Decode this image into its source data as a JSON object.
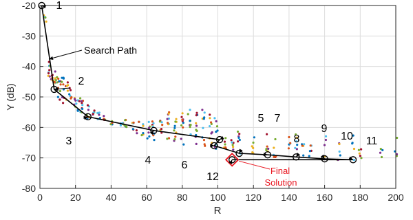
{
  "chart_data": {
    "type": "scatter",
    "xlabel": "R",
    "ylabel": "Y (dB)",
    "xlim": [
      0,
      200
    ],
    "ylim": [
      -80,
      -20
    ],
    "x_ticks": [
      0,
      20,
      40,
      60,
      80,
      100,
      120,
      140,
      160,
      180,
      200
    ],
    "y_ticks": [
      -80,
      -70,
      -60,
      -50,
      -40,
      -30,
      -20
    ],
    "grid": true,
    "search_path": [
      {
        "label": "1",
        "x": 1,
        "y": -20
      },
      {
        "label": "2",
        "x": 8,
        "y": -47.5
      },
      {
        "label": "3",
        "x": 27,
        "y": -56.5
      },
      {
        "label": "4",
        "x": 64,
        "y": -61
      },
      {
        "label": "5",
        "x": 101,
        "y": -64
      },
      {
        "label": "6",
        "x": 98,
        "y": -66
      },
      {
        "label": "7",
        "x": 112,
        "y": -68.5
      },
      {
        "label": "8",
        "x": 128,
        "y": -69
      },
      {
        "label": "9",
        "x": 144,
        "y": -69.7
      },
      {
        "label": "10",
        "x": 160,
        "y": -70.3
      },
      {
        "label": "11",
        "x": 176,
        "y": -70.6
      },
      {
        "label": "12",
        "x": 108,
        "y": -70.6
      }
    ],
    "annotations": {
      "search_path_label": "Search Path",
      "final_solution_line1": "Final",
      "final_solution_line2": "Solution"
    },
    "colors": {
      "path": "#000000",
      "final": "#e8141e",
      "grid": "#dcdcdc",
      "scatter": [
        "#0072bd",
        "#d95319",
        "#edb120",
        "#7e2f8e",
        "#77ac30",
        "#4dbeee",
        "#a2142f"
      ]
    }
  }
}
